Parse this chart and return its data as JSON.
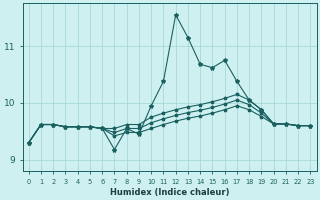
{
  "bg_color": "#cff0f0",
  "grid_color": "#a8d8d8",
  "line_color": "#1a6060",
  "xlabel": "Humidex (Indice chaleur)",
  "ylim": [
    8.8,
    11.75
  ],
  "xlim": [
    -0.5,
    23.5
  ],
  "y_ticks": [
    9,
    10,
    11
  ],
  "x_ticks": [
    0,
    1,
    2,
    3,
    4,
    5,
    6,
    7,
    8,
    9,
    10,
    11,
    12,
    13,
    14,
    15,
    16,
    17,
    18,
    19,
    20,
    21,
    22,
    23
  ],
  "series": [
    [
      9.3,
      9.62,
      9.62,
      9.58,
      9.58,
      9.58,
      9.55,
      9.18,
      9.55,
      9.45,
      9.95,
      10.38,
      11.55,
      11.15,
      10.68,
      10.62,
      10.75,
      10.38,
      10.05,
      9.88,
      9.63,
      9.63,
      9.6,
      9.6
    ],
    [
      9.3,
      9.62,
      9.62,
      9.58,
      9.58,
      9.58,
      9.55,
      9.55,
      9.62,
      9.62,
      9.75,
      9.82,
      9.88,
      9.93,
      9.97,
      10.02,
      10.08,
      10.15,
      10.05,
      9.88,
      9.63,
      9.63,
      9.6,
      9.6
    ],
    [
      9.3,
      9.62,
      9.62,
      9.58,
      9.58,
      9.58,
      9.55,
      9.48,
      9.55,
      9.55,
      9.65,
      9.72,
      9.78,
      9.83,
      9.87,
      9.92,
      9.98,
      10.05,
      9.97,
      9.82,
      9.63,
      9.63,
      9.6,
      9.6
    ],
    [
      9.3,
      9.62,
      9.62,
      9.58,
      9.58,
      9.58,
      9.55,
      9.42,
      9.48,
      9.48,
      9.55,
      9.62,
      9.68,
      9.73,
      9.77,
      9.82,
      9.88,
      9.95,
      9.88,
      9.76,
      9.63,
      9.63,
      9.6,
      9.6
    ]
  ]
}
